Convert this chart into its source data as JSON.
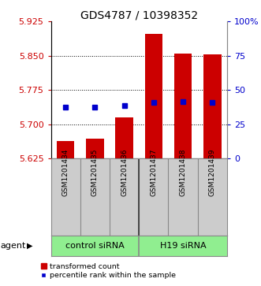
{
  "title": "GDS4787 / 10398352",
  "categories": [
    "GSM1201434",
    "GSM1201435",
    "GSM1201436",
    "GSM1201437",
    "GSM1201438",
    "GSM1201439"
  ],
  "bar_bottoms": [
    5.625,
    5.625,
    5.625,
    5.625,
    5.625,
    5.625
  ],
  "bar_tops": [
    5.663,
    5.668,
    5.715,
    5.897,
    5.855,
    5.853
  ],
  "blue_markers": [
    5.737,
    5.737,
    5.742,
    5.748,
    5.75,
    5.748
  ],
  "bar_color": "#cc0000",
  "marker_color": "#0000cc",
  "ylim_left": [
    5.625,
    5.925
  ],
  "yticks_left": [
    5.625,
    5.7,
    5.775,
    5.85,
    5.925
  ],
  "ylim_right": [
    0,
    100
  ],
  "yticks_right": [
    0,
    25,
    50,
    75,
    100
  ],
  "yticklabels_right": [
    "0",
    "25",
    "50",
    "75",
    "100%"
  ],
  "group1_label": "control siRNA",
  "group2_label": "H19 siRNA",
  "group1_indices": [
    0,
    1,
    2
  ],
  "group2_indices": [
    3,
    4,
    5
  ],
  "agent_label": "agent",
  "legend_bar_label": "transformed count",
  "legend_marker_label": "percentile rank within the sample",
  "bg_color": "#ffffff",
  "plot_bg": "#ffffff",
  "group_bg": "#90ee90",
  "sample_bg": "#cccccc",
  "grid_color": "#000000",
  "title_fontsize": 10,
  "tick_fontsize": 8,
  "label_fontsize": 8,
  "bar_width": 0.6,
  "n_groups": 2,
  "group_split": 2.5
}
